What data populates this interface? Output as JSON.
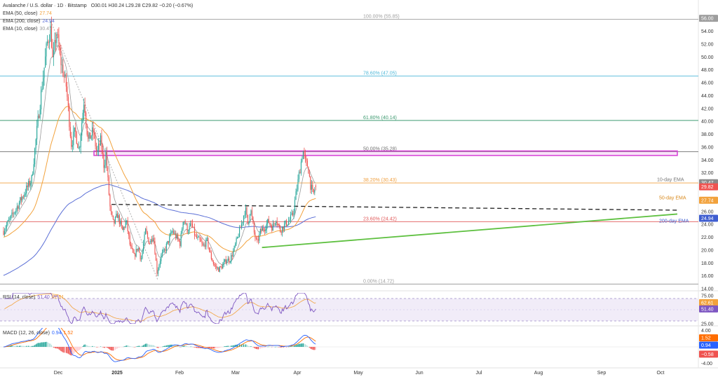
{
  "header": {
    "title": "Avalanche / U.S. dollar · 1D · Bitstamp",
    "ohlc": "O30.01  H30.24  L29.28  C29.82  −0.20 (−0.67%)",
    "legend": [
      {
        "label": "EMA (50, close)",
        "value": "27.74",
        "color": "#f2a23c"
      },
      {
        "label": "EMA (200, close)",
        "value": "24.94",
        "color": "#5b6fd6"
      },
      {
        "label": "EMA (10, close)",
        "value": "30.47",
        "color": "#9a9a9a"
      }
    ]
  },
  "colors": {
    "up": "#26a69a",
    "down": "#ef5350",
    "ema10": "#9a9a9a",
    "ema50": "#f2a23c",
    "ema200": "#5b6fd6",
    "rsi": "#7e57c2",
    "macd": "#2962ff",
    "signal": "#ff6d00",
    "zone": "#d63fd6",
    "trend": "#5ec040"
  },
  "chart_data": [
    {
      "type": "candlestick",
      "title": "Avalanche / U.S. dollar · 1D · Bitstamp",
      "ylim": [
        14,
        57
      ],
      "y_ticks": [
        "56.00",
        "54.00",
        "52.00",
        "50.00",
        "48.00",
        "46.00",
        "44.00",
        "42.00",
        "40.00",
        "38.00",
        "36.00",
        "34.00",
        "32.00",
        "30.00",
        "28.00",
        "26.00",
        "24.00",
        "22.00",
        "20.00",
        "18.00",
        "16.00",
        "14.00"
      ],
      "x_ticks": [
        "Dec",
        "2025",
        "Feb",
        "Mar",
        "Apr",
        "May",
        "Jun",
        "Jul",
        "Aug",
        "Sep",
        "Oct"
      ],
      "anchors": [
        {
          "m": 0,
          "p": 23
        },
        {
          "m": 1,
          "p": 26.5
        },
        {
          "m": 2.2,
          "p": 31
        },
        {
          "m": 2.8,
          "p": 42
        },
        {
          "m": 3.4,
          "p": 52
        },
        {
          "m": 3.7,
          "p": 54.5
        },
        {
          "m": 3.85,
          "p": 49
        },
        {
          "m": 4.15,
          "p": 54
        },
        {
          "m": 4.4,
          "p": 50
        },
        {
          "m": 4.9,
          "p": 45.5
        },
        {
          "m": 5.3,
          "p": 36.5
        },
        {
          "m": 5.6,
          "p": 38.5
        },
        {
          "m": 5.9,
          "p": 35.5
        },
        {
          "m": 6.3,
          "p": 43.5
        },
        {
          "m": 6.6,
          "p": 37
        },
        {
          "m": 7,
          "p": 38.5
        },
        {
          "m": 7.3,
          "p": 35
        },
        {
          "m": 7.6,
          "p": 37
        },
        {
          "m": 7.85,
          "p": 33
        },
        {
          "m": 8,
          "p": 35
        },
        {
          "m": 8.15,
          "p": 31
        },
        {
          "m": 8.35,
          "p": 26
        },
        {
          "m": 8.6,
          "p": 24
        },
        {
          "m": 8.9,
          "p": 25.5
        },
        {
          "m": 9.3,
          "p": 23
        },
        {
          "m": 9.6,
          "p": 24.5
        },
        {
          "m": 9.9,
          "p": 20.5
        },
        {
          "m": 10.2,
          "p": 19
        },
        {
          "m": 10.5,
          "p": 20.5
        },
        {
          "m": 10.75,
          "p": 18.5
        },
        {
          "m": 11.1,
          "p": 23
        },
        {
          "m": 11.4,
          "p": 21
        },
        {
          "m": 11.7,
          "p": 22.5
        },
        {
          "m": 12,
          "p": 16.5
        },
        {
          "m": 12.3,
          "p": 19
        },
        {
          "m": 12.6,
          "p": 20
        },
        {
          "m": 12.9,
          "p": 21.5
        },
        {
          "m": 13.2,
          "p": 23
        },
        {
          "m": 13.5,
          "p": 22
        },
        {
          "m": 13.8,
          "p": 21
        },
        {
          "m": 14.05,
          "p": 25
        },
        {
          "m": 14.4,
          "p": 23
        },
        {
          "m": 14.7,
          "p": 24
        },
        {
          "m": 15,
          "p": 22
        },
        {
          "m": 15.3,
          "p": 21.5
        },
        {
          "m": 15.6,
          "p": 20.5
        },
        {
          "m": 15.9,
          "p": 21.5
        },
        {
          "m": 16.2,
          "p": 19
        },
        {
          "m": 16.5,
          "p": 17.5
        },
        {
          "m": 16.8,
          "p": 17
        },
        {
          "m": 17.1,
          "p": 17.5
        },
        {
          "m": 17.4,
          "p": 18.5
        },
        {
          "m": 17.7,
          "p": 18.5
        },
        {
          "m": 18,
          "p": 20
        },
        {
          "m": 18.3,
          "p": 22
        },
        {
          "m": 18.6,
          "p": 24
        },
        {
          "m": 18.9,
          "p": 26.5
        },
        {
          "m": 19.1,
          "p": 24
        },
        {
          "m": 19.3,
          "p": 26.5
        },
        {
          "m": 19.6,
          "p": 22.5
        },
        {
          "m": 19.8,
          "p": 21
        },
        {
          "m": 20.1,
          "p": 23
        },
        {
          "m": 20.4,
          "p": 23.5
        },
        {
          "m": 20.7,
          "p": 24.5
        },
        {
          "m": 21,
          "p": 23.5
        },
        {
          "m": 21.3,
          "p": 25
        },
        {
          "m": 21.6,
          "p": 23
        },
        {
          "m": 22,
          "p": 24
        },
        {
          "m": 22.3,
          "p": 24.5
        },
        {
          "m": 22.6,
          "p": 25.5
        },
        {
          "m": 22.8,
          "p": 28
        },
        {
          "m": 23,
          "p": 30.5
        },
        {
          "m": 23.2,
          "p": 33
        },
        {
          "m": 23.4,
          "p": 35.5
        },
        {
          "m": 23.6,
          "p": 33.5
        },
        {
          "m": 23.8,
          "p": 33
        },
        {
          "m": 24,
          "p": 30
        },
        {
          "m": 24.2,
          "p": 28.5
        },
        {
          "m": 24.4,
          "p": 30
        }
      ],
      "fib_levels": [
        {
          "label": "100.00% (55.85)",
          "price": 55.85,
          "color": "#9e9e9e"
        },
        {
          "label": "78.60% (47.05)",
          "price": 47.05,
          "color": "#4fb8d8"
        },
        {
          "label": "61.80% (40.14)",
          "price": 40.14,
          "color": "#3d9a70"
        },
        {
          "label": "50.00% (35.28)",
          "price": 35.28,
          "color": "#707070"
        },
        {
          "label": "38.20% (30.43)",
          "price": 30.43,
          "color": "#f0a040"
        },
        {
          "label": "23.60% (24.42)",
          "price": 24.42,
          "color": "#e05858"
        },
        {
          "label": "0.00% (14.72)",
          "price": 14.72,
          "color": "#9e9e9e"
        }
      ],
      "resistance_zone": [
        34.7,
        35.4
      ],
      "horizontal_line": 26.2,
      "annotations": {
        "ema10_label": "10-day EMA",
        "ema50_label": "50-day EMA",
        "ema200_label": "200-day EMA"
      },
      "price_tags": [
        {
          "text": "56.00",
          "price": 56,
          "color": "#9e9e9e"
        },
        {
          "text": "30.47",
          "price": 30.47,
          "color": "#8a8a8a"
        },
        {
          "text": "29.82",
          "price": 29.82,
          "color": "#ef5350"
        },
        {
          "text": "27.74",
          "price": 27.74,
          "color": "#f2a23c"
        },
        {
          "text": "24.94",
          "price": 24.94,
          "color": "#3f5ed0"
        }
      ]
    },
    {
      "type": "line",
      "title": "RSI (14, close)",
      "series": [
        {
          "name": "RSI",
          "value": "51.40"
        },
        {
          "name": "MA",
          "value": "62.61"
        }
      ],
      "ylim": [
        25,
        80
      ],
      "y_ticks": [
        "75.00",
        "50.00",
        "25.00"
      ],
      "levels": [
        70,
        30
      ],
      "tags": [
        {
          "text": "62.61",
          "value": 62.61,
          "color": "#f2a23c"
        },
        {
          "text": "51.40",
          "value": 51.4,
          "color": "#7e57c2"
        }
      ]
    },
    {
      "type": "bar",
      "title": "MACD (12, 26, close)",
      "series": [
        {
          "name": "MACD",
          "value": "0.94"
        },
        {
          "name": "Signal",
          "value": "1.52"
        }
      ],
      "ylim": [
        -4.6,
        4.6
      ],
      "y_ticks": [
        "4.00",
        "0.00",
        "-4.00"
      ],
      "tags": [
        {
          "text": "1.52",
          "value": 1.52,
          "color": "#ff6d00"
        },
        {
          "text": "0.94",
          "value": 0.94,
          "color": "#2962ff"
        },
        {
          "text": "−0.58",
          "value": -0.58,
          "color": "#ef5350"
        }
      ]
    }
  ]
}
